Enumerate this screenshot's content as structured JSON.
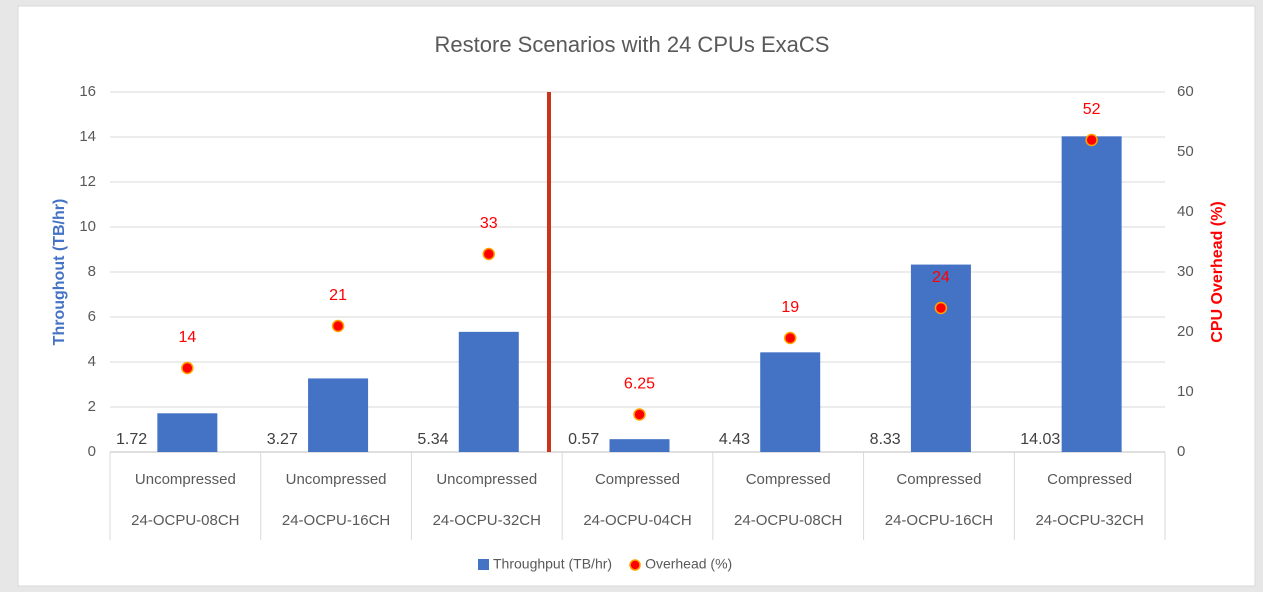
{
  "chart_data": {
    "type": "combo",
    "title": "Restore Scenarios with 24 CPUs ExaCS",
    "y_label": "Throughout (TB/hr)",
    "y2_label": "CPU Overhead (%)",
    "categories": [
      [
        "Uncompressed",
        "24-OCPU-08CH"
      ],
      [
        "Uncompressed",
        "24-OCPU-16CH"
      ],
      [
        "Uncompressed",
        "24-OCPU-32CH"
      ],
      [
        "Compressed",
        "24-OCPU-04CH"
      ],
      [
        "Compressed",
        "24-OCPU-08CH"
      ],
      [
        "Compressed",
        "24-OCPU-16CH"
      ],
      [
        "Compressed",
        "24-OCPU-32CH"
      ]
    ],
    "series": [
      {
        "name": "Throughput (TB/hr)",
        "type": "bar",
        "color": "#4472c4",
        "values": [
          1.72,
          3.27,
          5.34,
          0.57,
          4.43,
          8.33,
          14.03
        ]
      },
      {
        "name": "Overhead (%)",
        "type": "scatter",
        "axis": "y2",
        "color": "#ff0000",
        "values": [
          14,
          21,
          33,
          6.25,
          19,
          24,
          52
        ]
      }
    ],
    "ylim": [
      0,
      16
    ],
    "yticks": [
      0,
      2,
      4,
      6,
      8,
      10,
      12,
      14,
      16
    ],
    "y2lim": [
      0,
      60
    ],
    "y2ticks": [
      0,
      10,
      20,
      30,
      40,
      50,
      60
    ],
    "grid": true,
    "legend": "bottom"
  }
}
